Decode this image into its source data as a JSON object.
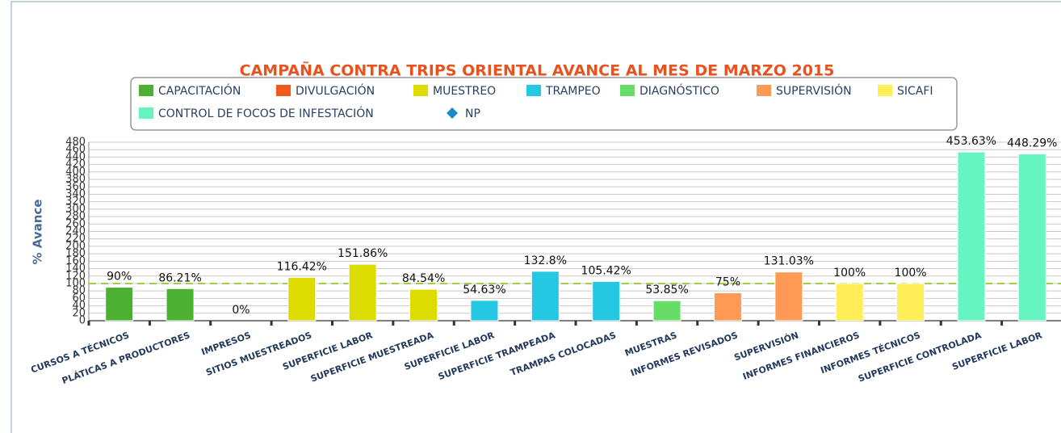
{
  "chart_data": {
    "type": "bar",
    "title": "CAMPAÑA CONTRA TRIPS ORIENTAL AVANCE AL MES DE MARZO 2015",
    "y_label": "% Avance",
    "categories": [
      "CURSOS A TÉCNICOS",
      "PLÁTICAS A PRODUCTORES",
      "IMPRESOS",
      "SITIOS MUESTREADOS",
      "SUPERFICIE LABOR",
      "SUPERFICIE MUESTREADA",
      "SUPERFICIE LABOR",
      "SUPERFICIE TRAMPEADA",
      "TRAMPAS COLOCADAS",
      "MUESTRAS",
      "INFORMES REVISADOS",
      "SUPERVISIÓN",
      "INFORMES FINANCIEROS",
      "INFORMES TÉCNICOS",
      "SUPERFICIE CONTROLADA",
      "SUPERFICIE LABOR"
    ],
    "series": [
      {
        "name": "CAPACITACIÓN",
        "color": "#4cb032",
        "values": [
          90,
          86.21,
          null,
          null,
          null,
          null,
          null,
          null,
          null,
          null,
          null,
          null,
          null,
          null,
          null,
          null
        ],
        "value_labels": [
          "90%",
          "86.21%",
          null,
          null,
          null,
          null,
          null,
          null,
          null,
          null,
          null,
          null,
          null,
          null,
          null,
          null
        ]
      },
      {
        "name": "DIVULGACIÓN",
        "color": "#f05a1e",
        "values": [
          null,
          null,
          0,
          null,
          null,
          null,
          null,
          null,
          null,
          null,
          null,
          null,
          null,
          null,
          null,
          null
        ],
        "value_labels": [
          null,
          null,
          "0%",
          null,
          null,
          null,
          null,
          null,
          null,
          null,
          null,
          null,
          null,
          null,
          null,
          null
        ]
      },
      {
        "name": "MUESTREO",
        "color": "#dcdc00",
        "values": [
          null,
          null,
          null,
          116.42,
          151.86,
          84.54,
          null,
          null,
          null,
          null,
          null,
          null,
          null,
          null,
          null,
          null
        ],
        "value_labels": [
          null,
          null,
          null,
          "116.42%",
          "151.86%",
          "84.54%",
          null,
          null,
          null,
          null,
          null,
          null,
          null,
          null,
          null,
          null
        ]
      },
      {
        "name": "TRAMPEO",
        "color": "#24c8e2",
        "values": [
          null,
          null,
          null,
          null,
          null,
          null,
          54.63,
          132.8,
          105.42,
          null,
          null,
          null,
          null,
          null,
          null,
          null
        ],
        "value_labels": [
          null,
          null,
          null,
          null,
          null,
          null,
          "54.63%",
          "132.8%",
          "105.42%",
          null,
          null,
          null,
          null,
          null,
          null,
          null
        ]
      },
      {
        "name": "DIAGNÓSTICO",
        "color": "#66dd66",
        "values": [
          null,
          null,
          null,
          null,
          null,
          null,
          null,
          null,
          null,
          53.85,
          null,
          null,
          null,
          null,
          null,
          null
        ],
        "value_labels": [
          null,
          null,
          null,
          null,
          null,
          null,
          null,
          null,
          null,
          "53.85%",
          null,
          null,
          null,
          null,
          null,
          null
        ]
      },
      {
        "name": "SUPERVISIÓN",
        "color": "#ff9a55",
        "values": [
          null,
          null,
          null,
          null,
          null,
          null,
          null,
          null,
          null,
          null,
          75,
          131.03,
          null,
          null,
          null,
          null
        ],
        "value_labels": [
          null,
          null,
          null,
          null,
          null,
          null,
          null,
          null,
          null,
          null,
          "75%",
          "131.03%",
          null,
          null,
          null,
          null
        ]
      },
      {
        "name": "SICAFI",
        "color": "#ffee58",
        "values": [
          null,
          null,
          null,
          null,
          null,
          null,
          null,
          null,
          null,
          null,
          null,
          null,
          100,
          100,
          null,
          null
        ],
        "value_labels": [
          null,
          null,
          null,
          null,
          null,
          null,
          null,
          null,
          null,
          null,
          null,
          null,
          "100%",
          "100%",
          null,
          null
        ]
      },
      {
        "name": "CONTROL DE FOCOS DE INFESTACIÓN",
        "color": "#66f5c0",
        "values": [
          null,
          null,
          null,
          null,
          null,
          null,
          null,
          null,
          null,
          null,
          null,
          null,
          null,
          null,
          453.63,
          448.29
        ],
        "value_labels": [
          null,
          null,
          null,
          null,
          null,
          null,
          null,
          null,
          null,
          null,
          null,
          null,
          null,
          null,
          "453.63%",
          "448.29%"
        ]
      },
      {
        "name": "NP",
        "color": "#1a8acb",
        "marker": "diamond"
      }
    ],
    "target_line": {
      "value": 100,
      "color": "#9fd040"
    },
    "ylim": [
      0,
      480
    ],
    "yticks": [
      0,
      20,
      40,
      60,
      80,
      100,
      120,
      140,
      160,
      180,
      200,
      220,
      240,
      260,
      280,
      300,
      320,
      340,
      360,
      380,
      400,
      420,
      440,
      460,
      480
    ],
    "grid": true
  }
}
